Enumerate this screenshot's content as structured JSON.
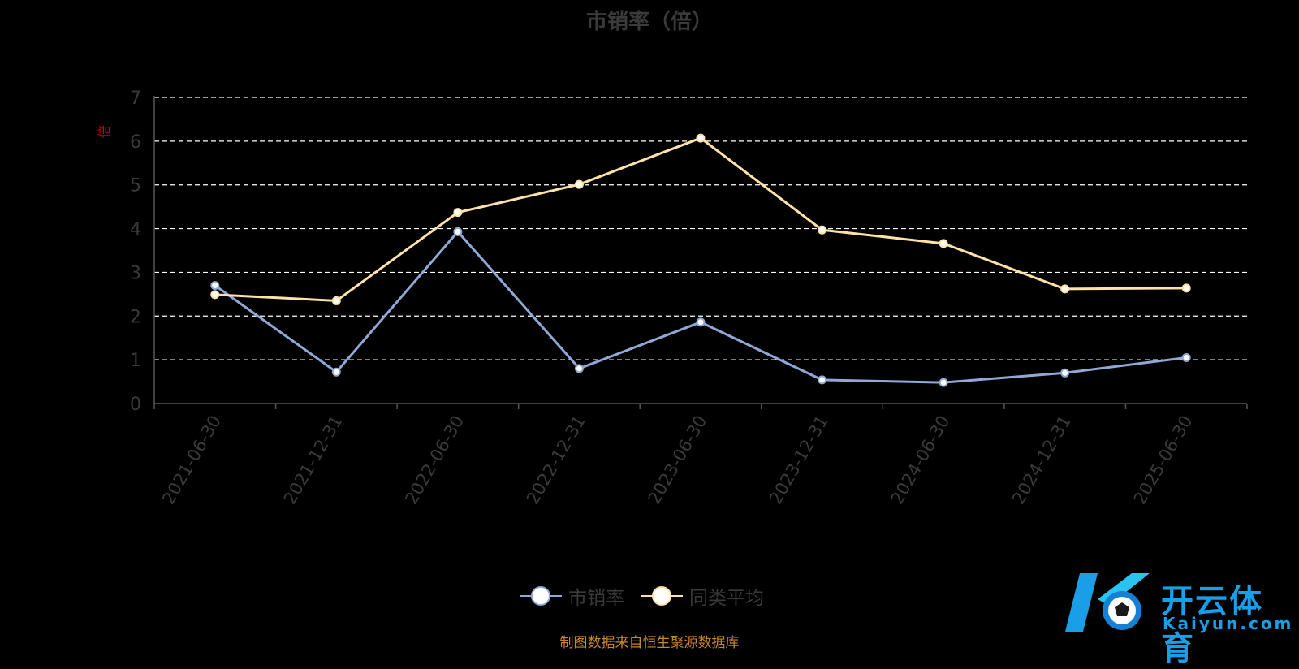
{
  "chart_data": {
    "type": "line",
    "title": "市销率（倍）",
    "ylabel": "倍",
    "ylim": [
      0,
      7
    ],
    "yticks": [
      0,
      1,
      2,
      3,
      4,
      5,
      6,
      7
    ],
    "grid": true,
    "legend_position": "bottom",
    "categories": [
      "2021-06-30",
      "2021-12-31",
      "2022-06-30",
      "2022-12-31",
      "2023-06-30",
      "2023-12-31",
      "2024-06-30",
      "2024-12-31",
      "2025-06-30"
    ],
    "series": [
      {
        "name": "市销率",
        "color": "#8fa8d6",
        "values": [
          2.7,
          0.72,
          3.93,
          0.8,
          1.86,
          0.54,
          0.48,
          0.7,
          1.05
        ]
      },
      {
        "name": "同类平均",
        "color": "#ffe2a8",
        "values": [
          2.49,
          2.35,
          4.37,
          5.01,
          6.07,
          3.97,
          3.66,
          2.62,
          2.64
        ]
      }
    ]
  },
  "footer": {
    "source": "制图数据来自恒生聚源数据库"
  },
  "watermark": {
    "name_cn": "开云体育",
    "name_en": "Kaiyun.com"
  }
}
